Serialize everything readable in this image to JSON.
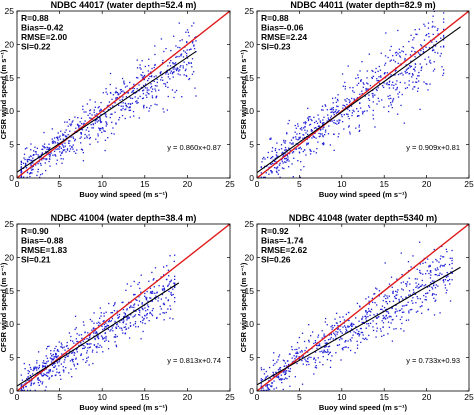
{
  "figure": {
    "xlabel": "Buoy wind speed (m s⁻¹)",
    "ylabel": "CFSR wind speed (m s⁻¹)"
  },
  "chart_data": [
    {
      "type": "scatter",
      "title": "NDBC 44017 (water depth=52.4 m)",
      "xlabel": "Buoy wind speed (m s⁻¹)",
      "ylabel": "CFSR wind speed (m s⁻¹)",
      "xlim": [
        0,
        25
      ],
      "ylim": [
        0,
        25
      ],
      "xticks": [
        "0",
        "5",
        "10",
        "15",
        "20",
        "25"
      ],
      "yticks": [
        "0",
        "5",
        "10",
        "15",
        "20",
        "25"
      ],
      "stats": {
        "r": "R=0.88",
        "bias": "Bias=-0.42",
        "rmse": "RMSE=2.00",
        "si": "SI=0.22"
      },
      "fit": {
        "slope": 0.86,
        "intercept": 0.87,
        "label": "y = 0.860x+0.87",
        "x_range": [
          0,
          21
        ]
      },
      "cloud": {
        "x_range": [
          0.5,
          21
        ],
        "n_points": 700,
        "spread": 2.0
      },
      "colors": {
        "points": "#1f1fd6",
        "one_to_one": "#e01b1b",
        "fit": "#000000"
      },
      "grid": false
    },
    {
      "type": "scatter",
      "title": "NDBC 44011 (water depth=82.9 m)",
      "xlabel": "Buoy wind speed (m s⁻¹)",
      "ylabel": "CFSR wind speed (m s⁻¹)",
      "xlim": [
        0,
        25
      ],
      "ylim": [
        0,
        25
      ],
      "xticks": [
        "0",
        "5",
        "10",
        "15",
        "20",
        "25"
      ],
      "yticks": [
        "0",
        "5",
        "10",
        "15",
        "20",
        "25"
      ],
      "stats": {
        "r": "R=0.88",
        "bias": "Bias=-0.06",
        "rmse": "RMSE=2.24",
        "si": "SI=0.23"
      },
      "fit": {
        "slope": 0.909,
        "intercept": 0.81,
        "label": "y = 0.909x+0.81",
        "x_range": [
          0,
          24
        ]
      },
      "cloud": {
        "x_range": [
          0.5,
          22
        ],
        "n_points": 700,
        "spread": 2.2
      },
      "colors": {
        "points": "#1f1fd6",
        "one_to_one": "#e01b1b",
        "fit": "#000000"
      },
      "grid": false
    },
    {
      "type": "scatter",
      "title": "NDBC 41004 (water depth=38.4 m)",
      "xlabel": "Buoy wind speed (m s⁻¹)",
      "ylabel": "CFSR wind speed (m s⁻¹)",
      "xlim": [
        0,
        25
      ],
      "ylim": [
        0,
        25
      ],
      "xticks": [
        "0",
        "5",
        "10",
        "15",
        "20",
        "25"
      ],
      "yticks": [
        "0",
        "5",
        "10",
        "15",
        "20",
        "25"
      ],
      "stats": {
        "r": "R=0.90",
        "bias": "Bias=-0.88",
        "rmse": "RMSE=1.83",
        "si": "SI=0.21"
      },
      "fit": {
        "slope": 0.813,
        "intercept": 0.74,
        "label": "y = 0.813x+0.74",
        "x_range": [
          0,
          19
        ]
      },
      "cloud": {
        "x_range": [
          0.5,
          18.5
        ],
        "n_points": 650,
        "spread": 1.8
      },
      "colors": {
        "points": "#1f1fd6",
        "one_to_one": "#e01b1b",
        "fit": "#000000"
      },
      "grid": false
    },
    {
      "type": "scatter",
      "title": "NDBC 41048 (water depth=5340 m)",
      "xlabel": "Buoy wind speed (m s⁻¹)",
      "ylabel": "CFSR wind speed (m s⁻¹)",
      "xlim": [
        0,
        25
      ],
      "ylim": [
        0,
        25
      ],
      "xticks": [
        "0",
        "5",
        "10",
        "15",
        "20",
        "25"
      ],
      "yticks": [
        "0",
        "5",
        "10",
        "15",
        "20",
        "25"
      ],
      "stats": {
        "r": "R=0.92",
        "bias": "Bias=-1.74",
        "rmse": "RMSE=2.62",
        "si": "SI=0.26"
      },
      "fit": {
        "slope": 0.733,
        "intercept": 0.93,
        "label": "y = 0.733x+0.93",
        "x_range": [
          0,
          24
        ]
      },
      "cloud": {
        "x_range": [
          0.5,
          23
        ],
        "n_points": 700,
        "spread": 1.9
      },
      "colors": {
        "points": "#1f1fd6",
        "one_to_one": "#e01b1b",
        "fit": "#000000"
      },
      "grid": false
    }
  ]
}
